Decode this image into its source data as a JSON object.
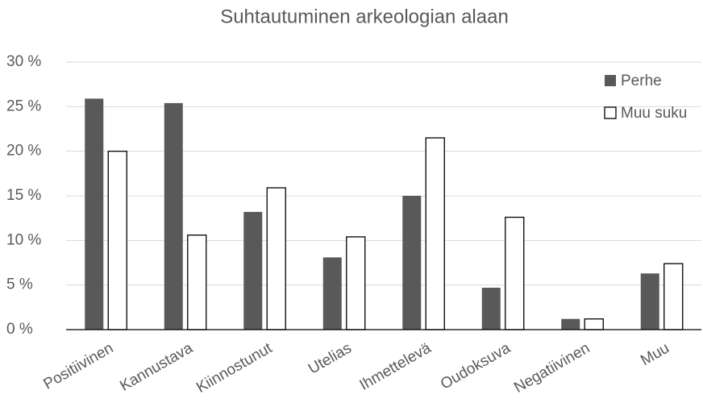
{
  "chart_data": {
    "type": "bar",
    "title": "Suhtautuminen arkeologian alaan",
    "categories": [
      "Positiivinen",
      "Kannustava",
      "Kiinnostunut",
      "Utelias",
      "Ihmettelevä",
      "Oudoksuva",
      "Negatiivinen",
      "Muu"
    ],
    "series": [
      {
        "name": "Perhe",
        "color": "#595959",
        "values": [
          25.9,
          25.4,
          13.2,
          8.1,
          15.0,
          4.7,
          1.2,
          6.3
        ]
      },
      {
        "name": "Muu suku",
        "color": "#ffffff",
        "values": [
          20.0,
          10.6,
          15.9,
          10.4,
          21.5,
          12.6,
          1.2,
          7.4
        ]
      }
    ],
    "ylim": [
      0,
      30
    ],
    "yticks": [
      {
        "value": 0,
        "label": "0 %"
      },
      {
        "value": 5,
        "label": "5 %"
      },
      {
        "value": 10,
        "label": "10 %"
      },
      {
        "value": 15,
        "label": "15 %"
      },
      {
        "value": 20,
        "label": "20 %"
      },
      {
        "value": 25,
        "label": "25 %"
      },
      {
        "value": 30,
        "label": "30 %"
      }
    ],
    "grid": true,
    "legend": "top-right"
  }
}
